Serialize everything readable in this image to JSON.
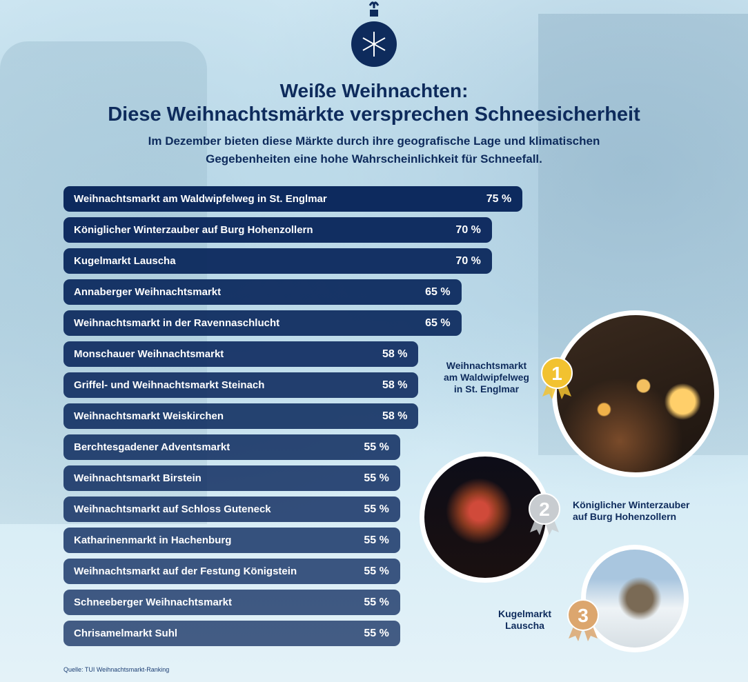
{
  "header": {
    "title_line1": "Weiße Weihnachten:",
    "title_line2": "Diese Weihnachtsmärkte versprechen Schneesicherheit",
    "subtitle_line1": "Im Dezember bieten diese Märkte durch ihre geografische Lage und klimatischen",
    "subtitle_line2": "Gegebenheiten eine hohe Wahrscheinlichkeit für Schneefall."
  },
  "chart_data": {
    "type": "bar",
    "orientation": "horizontal",
    "unit": "%",
    "categories": [
      "Weihnachtsmarkt am Waldwipfelweg in St. Englmar",
      "Königlicher Winterzauber auf Burg Hohenzollern",
      "Kugelmarkt Lauscha",
      "Annaberger Weihnachtsmarkt",
      "Weihnachtsmarkt in der Ravennaschlucht",
      "Monschauer Weihnachtsmarkt",
      "Griffel- und Weihnachtsmarkt Steinach",
      "Weihnachtsmarkt Weiskirchen",
      "Berchtesgadener Adventsmarkt",
      "Weihnachtsmarkt Birstein",
      "Weihnachtsmarkt auf Schloss Guteneck",
      "Katharinenmarkt in Hachenburg",
      "Weihnachtsmarkt auf der Festung Königstein",
      "Schneeberger Weihnachtsmarkt",
      "Chrisamelmarkt Suhl"
    ],
    "values": [
      75,
      70,
      70,
      65,
      65,
      58,
      58,
      58,
      55,
      55,
      55,
      55,
      55,
      55,
      55
    ],
    "value_labels": [
      "75 %",
      "70 %",
      "70 %",
      "65 %",
      "65 %",
      "58 %",
      "58 %",
      "58 %",
      "55 %",
      "55 %",
      "55 %",
      "55 %",
      "55 %",
      "55 %",
      "55 %"
    ],
    "bar_color": "#0d2a5e"
  },
  "podium": [
    {
      "rank": "1",
      "label_lines": [
        "Weihnachtsmarkt",
        "am Waldwipfelweg",
        "in St. Englmar"
      ],
      "medal_color": "#f2c230"
    },
    {
      "rank": "2",
      "label_lines": [
        "Königlicher Winterzauber",
        "auf Burg Hohenzollern"
      ],
      "medal_color": "#c8ccd0"
    },
    {
      "rank": "3",
      "label_lines": [
        "Kugelmarkt",
        "Lauscha"
      ],
      "medal_color": "#dca66e"
    }
  ],
  "source": "Quelle: TUI Weihnachtsmarkt-Ranking"
}
